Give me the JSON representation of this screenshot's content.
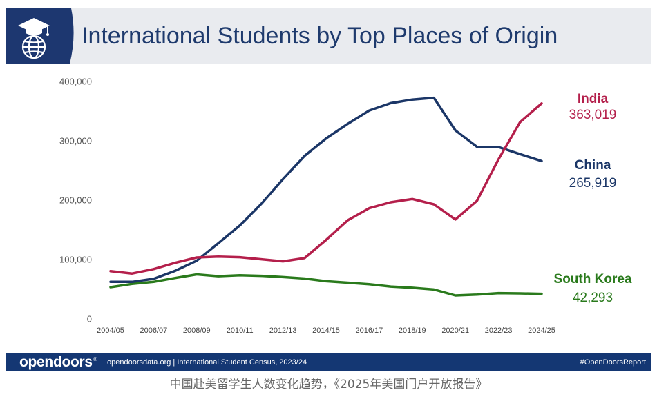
{
  "icons": {
    "header": "graduation-globe-icon"
  },
  "colors": {
    "header_band": "#e9ebef",
    "badge": "#1d3770",
    "title": "#1e3a6d",
    "footer": "#143773"
  },
  "chart_data": {
    "type": "line",
    "title": "International Students by Top Places of Origin",
    "xlabel": "",
    "ylabel": "",
    "ylim": [
      0,
      400000
    ],
    "y_ticks": [
      400000,
      300000,
      200000,
      100000,
      0
    ],
    "y_tick_labels": [
      "400,000",
      "300,000",
      "200,000",
      "100,000",
      "0"
    ],
    "x_tick_labels": [
      "2004/05",
      "2006/07",
      "2008/09",
      "2010/11",
      "2012/13",
      "2014/15",
      "2016/17",
      "2018/19",
      "2020/21",
      "2022/23",
      "2024/25"
    ],
    "grid": false,
    "legend": "right",
    "series": [
      {
        "name": "India",
        "color": "#b41f4b",
        "values": [
          80500,
          76500,
          84000,
          94500,
          103500,
          105000,
          104000,
          100500,
          97000,
          102500,
          133000,
          166000,
          186500,
          196500,
          202000,
          193000,
          167500,
          199000,
          269000,
          331500,
          363019
        ],
        "end_label": "363,019"
      },
      {
        "name": "China",
        "color": "#1b3667",
        "values": [
          62500,
          62500,
          67500,
          81000,
          98000,
          127500,
          157500,
          194000,
          235500,
          274500,
          304000,
          328500,
          351000,
          363500,
          369500,
          372500,
          317500,
          290000,
          289500,
          277500,
          265919
        ],
        "end_label": "265,919"
      },
      {
        "name": "South Korea",
        "color": "#2a7a1c",
        "values": [
          53500,
          59000,
          62500,
          69000,
          75000,
          72000,
          73500,
          72500,
          70500,
          68000,
          63500,
          61000,
          58500,
          54500,
          52500,
          49500,
          39500,
          41000,
          43500,
          43000,
          42293
        ],
        "end_label": "42,293"
      }
    ]
  },
  "footer": {
    "logo_text": "opendoors",
    "logo_mark": "®",
    "source": "opendoorsdata.org | International Student Census, 2023/24",
    "hashtag": "#OpenDoorsReport"
  },
  "caption": "中国赴美留学生人数变化趋势，《2025年美国门户开放报告》"
}
